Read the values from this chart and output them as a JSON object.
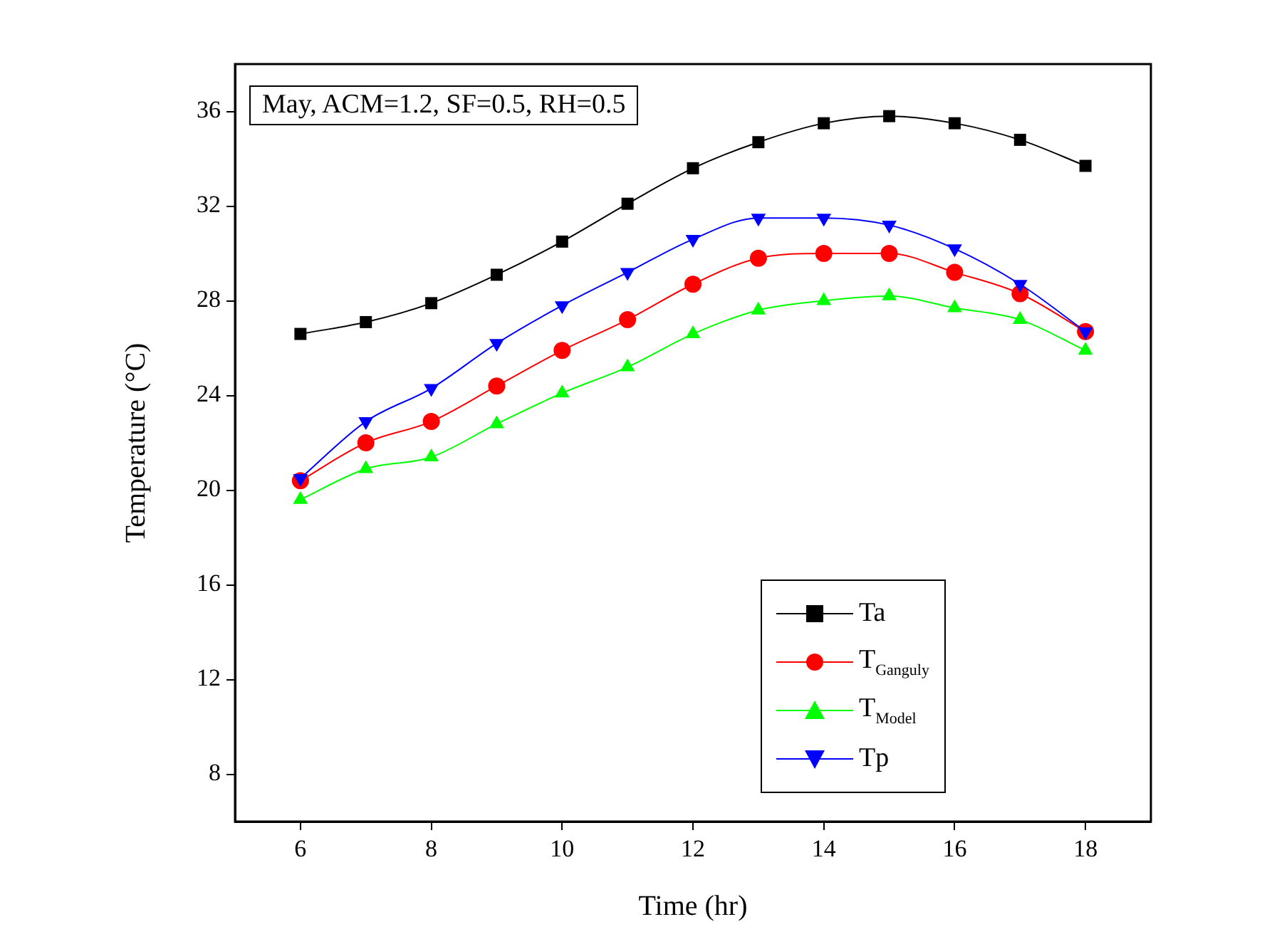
{
  "chart_data": {
    "type": "line",
    "xlabel": "Time (hr)",
    "ylabel": "Temperature (°C)",
    "x": [
      6,
      7,
      8,
      9,
      10,
      11,
      12,
      13,
      14,
      15,
      16,
      17,
      18
    ],
    "xlim": [
      5,
      19
    ],
    "xticks": [
      6,
      8,
      10,
      12,
      14,
      16,
      18
    ],
    "ylim": [
      6,
      38
    ],
    "yticks": [
      8,
      12,
      16,
      20,
      24,
      28,
      32,
      36
    ],
    "grid": false,
    "legend": "bottom right",
    "line_style": "solid",
    "annotations": [
      "May, ACM=1.2, SF=0.5, RH=0.5"
    ],
    "series": [
      {
        "name": "Ta",
        "color": "#000000",
        "marker": "square",
        "values": [
          26.6,
          27.1,
          27.9,
          29.1,
          30.5,
          32.1,
          33.6,
          34.7,
          35.5,
          35.8,
          35.5,
          34.8,
          33.7
        ]
      },
      {
        "name": "T$_{Ganguly}$",
        "color": "#ff0000",
        "marker": "circle",
        "values": [
          20.4,
          22.0,
          22.9,
          24.4,
          25.9,
          27.2,
          28.7,
          29.8,
          30.0,
          30.0,
          29.2,
          28.3,
          26.7
        ]
      },
      {
        "name": "T$_{Model}$",
        "color": "#00ff00",
        "marker": "triangle",
        "values": [
          19.6,
          20.9,
          21.4,
          22.8,
          24.1,
          25.2,
          26.6,
          27.6,
          28.0,
          28.2,
          27.7,
          27.2,
          25.9
        ]
      },
      {
        "name": "Tp",
        "color": "#0000ff",
        "marker": "triangle-down",
        "values": [
          20.5,
          22.9,
          24.3,
          26.2,
          27.8,
          29.2,
          30.6,
          31.5,
          31.5,
          31.2,
          30.2,
          28.7,
          26.7
        ]
      }
    ]
  }
}
